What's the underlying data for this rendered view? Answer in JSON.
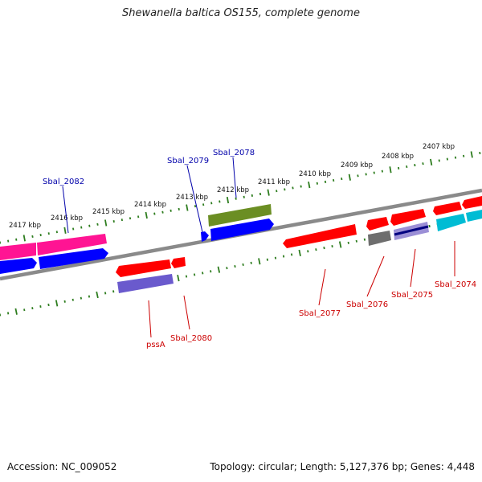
{
  "title": "Shewanella baltica OS155, complete genome",
  "accession": "Accession: NC_009052",
  "summary": "Topology: circular; Length: 5,127,376 bp; Genes: 4,448",
  "colors": {
    "backbone": "#808080",
    "tick": "#2e7d1f",
    "label_red": "#cc0000",
    "label_blue": "#0000aa",
    "red": "#ff0000",
    "blue": "#0000ff",
    "pink": "#ff1493",
    "olive": "#6b8e23",
    "purple": "#6a5acd",
    "cyan": "#00bcd4",
    "grey": "#6e6e6e",
    "navy": "#000080"
  },
  "ruler_labels": [
    "2417 kbp",
    "2416 kbp",
    "2415 kbp",
    "2414 kbp",
    "2413 kbp",
    "2412 kbp",
    "2411 kbp",
    "2410 kbp",
    "2409 kbp",
    "2408 kbp",
    "2407 kbp"
  ],
  "gene_labels": {
    "sbal_2082": "Sbal_2082",
    "sbal_2079": "Sbal_2079",
    "sbal_2078": "Sbal_2078",
    "pssa": "pssA",
    "sbal_2080": "Sbal_2080",
    "sbal_2077": "Sbal_2077",
    "sbal_2076": "Sbal_2076",
    "sbal_2075": "Sbal_2075",
    "sbal_2074": "Sbal_2074"
  }
}
